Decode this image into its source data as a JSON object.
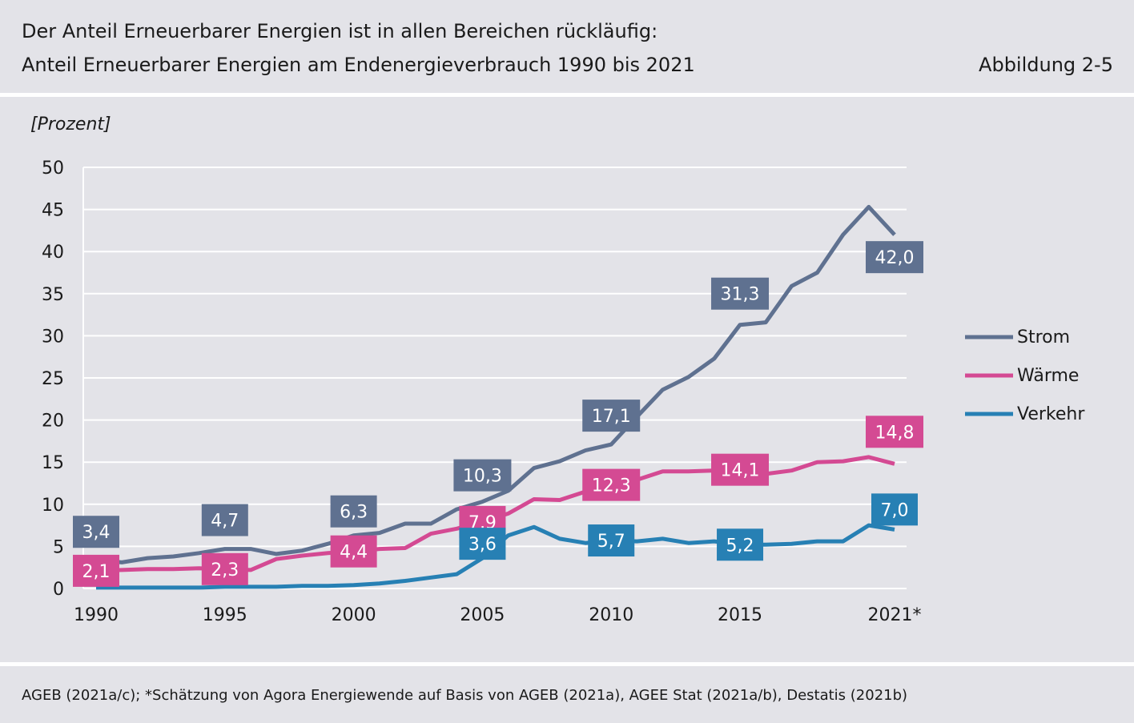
{
  "header": {
    "title": "Der Anteil Erneuerbarer Energien ist in allen Bereichen rückläufig:",
    "subtitle": "Anteil Erneuerbarer Energien am Endenergieverbrauch 1990 bis 2021",
    "figure_label": "Abbildung 2-5"
  },
  "footer": {
    "source": "AGEB (2021a/c); *Schätzung von Agora Energiewende auf Basis von AGEB (2021a), AGEE Stat (2021a/b), Destatis (2021b)"
  },
  "chart_data": {
    "type": "line",
    "ylabel": "[Prozent]",
    "ylim": [
      0,
      50
    ],
    "yticks": [
      0,
      5,
      10,
      15,
      20,
      25,
      30,
      35,
      40,
      45,
      50
    ],
    "xlim": [
      1990,
      2021
    ],
    "xtick_labels": [
      "1990",
      "1995",
      "2000",
      "2005",
      "2010",
      "2015",
      "2021*"
    ],
    "xtick_values": [
      1990,
      1995,
      2000,
      2005,
      2010,
      2015,
      2021
    ],
    "grid": true,
    "legend_position": "right",
    "x": [
      1990,
      1991,
      1992,
      1993,
      1994,
      1995,
      1996,
      1997,
      1998,
      1999,
      2000,
      2001,
      2002,
      2003,
      2004,
      2005,
      2006,
      2007,
      2008,
      2009,
      2010,
      2011,
      2012,
      2013,
      2014,
      2015,
      2016,
      2017,
      2018,
      2019,
      2020,
      2021
    ],
    "series": [
      {
        "name": "Strom",
        "color": "#5f7190",
        "values": [
          3.4,
          3.1,
          3.6,
          3.8,
          4.2,
          4.7,
          4.7,
          4.1,
          4.5,
          5.3,
          6.3,
          6.6,
          7.7,
          7.7,
          9.4,
          10.3,
          11.6,
          14.3,
          15.1,
          16.4,
          17.1,
          20.4,
          23.6,
          25.1,
          27.3,
          31.3,
          31.6,
          35.9,
          37.5,
          42.0,
          45.3,
          42.0
        ],
        "labels": [
          {
            "x": 1990,
            "value": 3.4,
            "text": "3,4"
          },
          {
            "x": 1995,
            "value": 4.7,
            "text": "4,7"
          },
          {
            "x": 2000,
            "value": 6.3,
            "text": "6,3"
          },
          {
            "x": 2005,
            "value": 10.3,
            "text": "10,3"
          },
          {
            "x": 2010,
            "value": 17.1,
            "text": "17,1"
          },
          {
            "x": 2015,
            "value": 31.3,
            "text": "31,3"
          },
          {
            "x": 2021,
            "value": 42.0,
            "text": "42,0"
          }
        ]
      },
      {
        "name": "Wärme",
        "color": "#d44a93",
        "values": [
          2.1,
          2.2,
          2.3,
          2.3,
          2.4,
          2.3,
          2.2,
          3.5,
          3.9,
          4.2,
          4.4,
          4.7,
          4.8,
          6.5,
          7.1,
          7.9,
          8.9,
          10.6,
          10.5,
          11.5,
          12.3,
          12.9,
          13.9,
          13.9,
          14.0,
          14.1,
          13.6,
          14.0,
          15.0,
          15.1,
          15.6,
          14.8
        ],
        "labels": [
          {
            "x": 1990,
            "value": 2.1,
            "text": "2,1"
          },
          {
            "x": 1995,
            "value": 2.3,
            "text": "2,3"
          },
          {
            "x": 2000,
            "value": 4.4,
            "text": "4,4"
          },
          {
            "x": 2005,
            "value": 7.9,
            "text": "7,9"
          },
          {
            "x": 2010,
            "value": 12.3,
            "text": "12,3"
          },
          {
            "x": 2015,
            "value": 14.1,
            "text": "14,1"
          },
          {
            "x": 2021,
            "value": 14.8,
            "text": "14,8"
          }
        ]
      },
      {
        "name": "Verkehr",
        "color": "#2780b4",
        "values": [
          0.1,
          0.1,
          0.1,
          0.1,
          0.1,
          0.2,
          0.2,
          0.2,
          0.3,
          0.3,
          0.4,
          0.6,
          0.9,
          1.3,
          1.7,
          3.6,
          6.3,
          7.3,
          5.9,
          5.4,
          5.7,
          5.6,
          5.9,
          5.4,
          5.6,
          5.2,
          5.2,
          5.3,
          5.6,
          5.6,
          7.5,
          7.0
        ],
        "labels": [
          {
            "x": 2005,
            "value": 3.6,
            "text": "3,6"
          },
          {
            "x": 2010,
            "value": 5.7,
            "text": "5,7"
          },
          {
            "x": 2015,
            "value": 5.2,
            "text": "5,2"
          },
          {
            "x": 2021,
            "value": 7.0,
            "text": "7,0"
          }
        ]
      }
    ]
  }
}
